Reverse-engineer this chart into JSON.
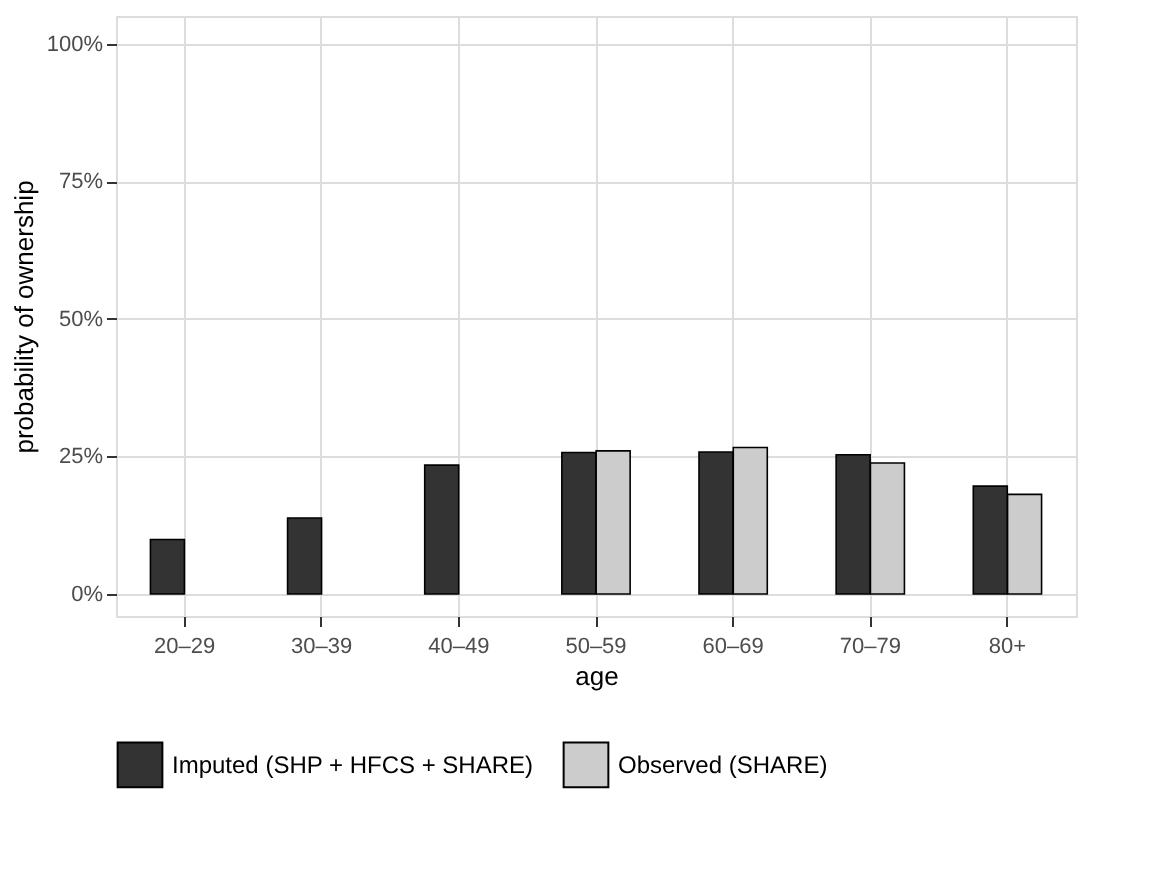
{
  "chart_data": {
    "type": "bar",
    "xlabel": "age",
    "ylabel": "probability of ownership",
    "categories": [
      "20–29",
      "30–39",
      "40–49",
      "50–59",
      "60–69",
      "70–79",
      "80+"
    ],
    "series": [
      {
        "name": "Imputed (SHP + HFCS + SHARE)",
        "color": "#333333",
        "values": [
          9.9,
          13.8,
          23.4,
          25.7,
          25.8,
          25.3,
          19.6
        ]
      },
      {
        "name": "Observed (SHARE)",
        "color": "#cccccc",
        "values": [
          null,
          null,
          null,
          26.0,
          26.6,
          23.8,
          18.1
        ]
      }
    ],
    "ylim": [
      -4,
      105
    ],
    "yticks": [
      {
        "value": 0,
        "label": "0%"
      },
      {
        "value": 25,
        "label": "25%"
      },
      {
        "value": 50,
        "label": "50%"
      },
      {
        "value": 75,
        "label": "75%"
      },
      {
        "value": 100,
        "label": "100%"
      }
    ],
    "grid": true,
    "legend": "bottom"
  }
}
